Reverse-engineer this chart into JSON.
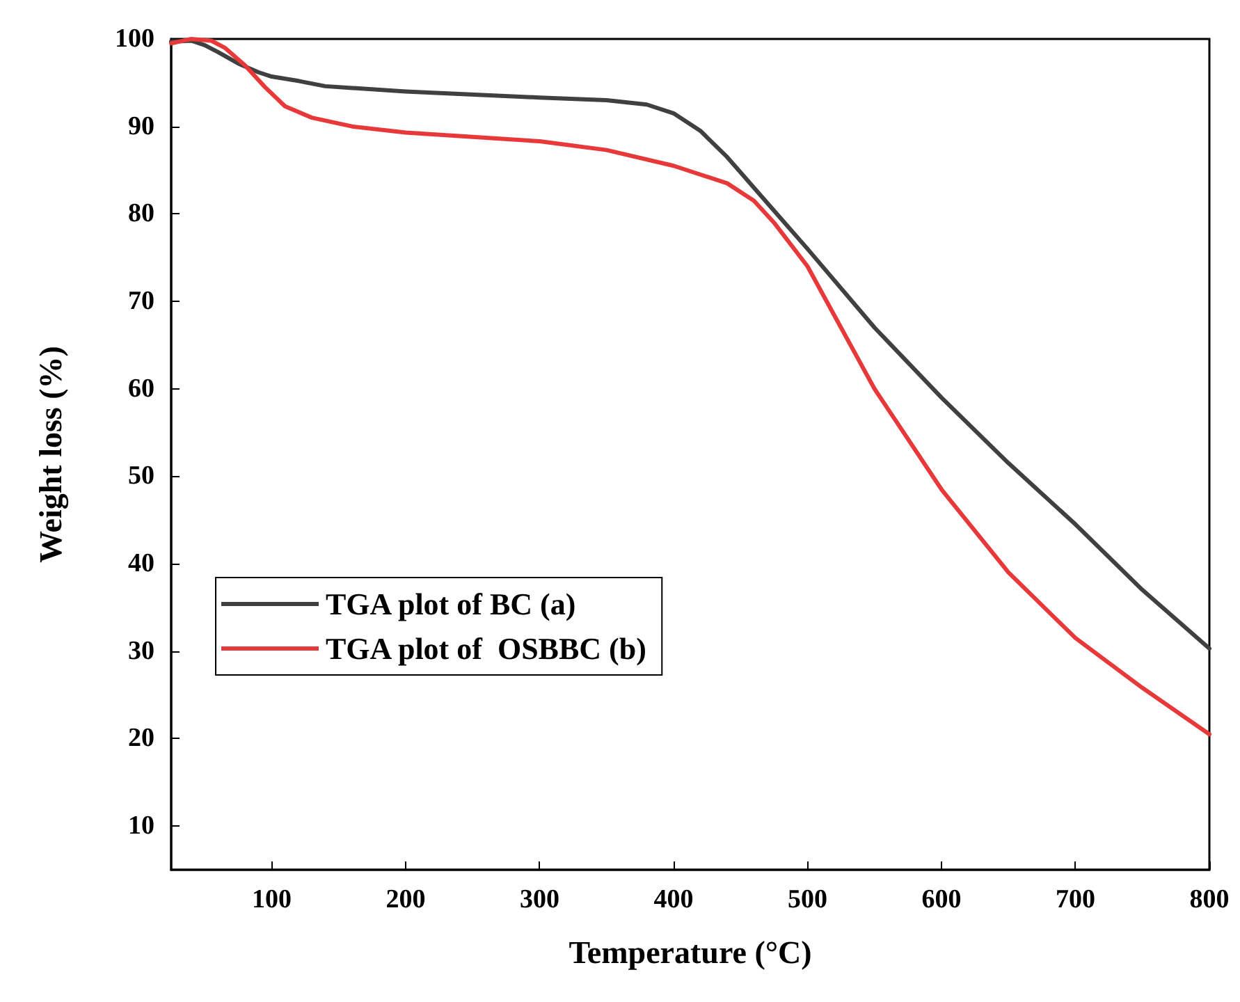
{
  "chart_data": {
    "type": "line",
    "xlabel": "Temperature (°C)",
    "ylabel": "Weight loss (%)",
    "xlim": [
      25,
      800
    ],
    "xticks": [
      100,
      200,
      300,
      400,
      500,
      600,
      700,
      800
    ],
    "ylim": [
      5,
      100
    ],
    "yticks": [
      10,
      20,
      30,
      40,
      50,
      60,
      70,
      80,
      90,
      100
    ],
    "grid": false,
    "legend": "left",
    "marker": "none",
    "line_style": "solid",
    "series": [
      {
        "name": "TGA plot of BC (a)",
        "color": "#404040",
        "x": [
          25,
          40,
          50,
          60,
          75,
          90,
          100,
          120,
          140,
          200,
          300,
          350,
          380,
          400,
          420,
          440,
          460,
          480,
          500,
          550,
          600,
          650,
          700,
          750,
          800
        ],
        "values": [
          99.7,
          99.8,
          99.3,
          98.5,
          97.2,
          96.2,
          95.7,
          95.2,
          94.6,
          94.0,
          93.3,
          93.0,
          92.5,
          91.5,
          89.5,
          86.5,
          83,
          79.5,
          76,
          67,
          59,
          51.5,
          44.5,
          37,
          30.3
        ]
      },
      {
        "name": "TGA plot of  OSBBC (b)",
        "color": "#e8393a",
        "x": [
          25,
          40,
          55,
          65,
          80,
          95,
          110,
          130,
          160,
          200,
          250,
          300,
          350,
          400,
          440,
          460,
          475,
          500,
          525,
          550,
          600,
          650,
          700,
          750,
          800
        ],
        "values": [
          99.5,
          100,
          99.8,
          99,
          97,
          94.5,
          92.3,
          91,
          90,
          89.3,
          88.8,
          88.3,
          87.3,
          85.5,
          83.5,
          81.5,
          79,
          74,
          67,
          60,
          48.5,
          39,
          31.5,
          25.8,
          20.5
        ]
      }
    ]
  }
}
